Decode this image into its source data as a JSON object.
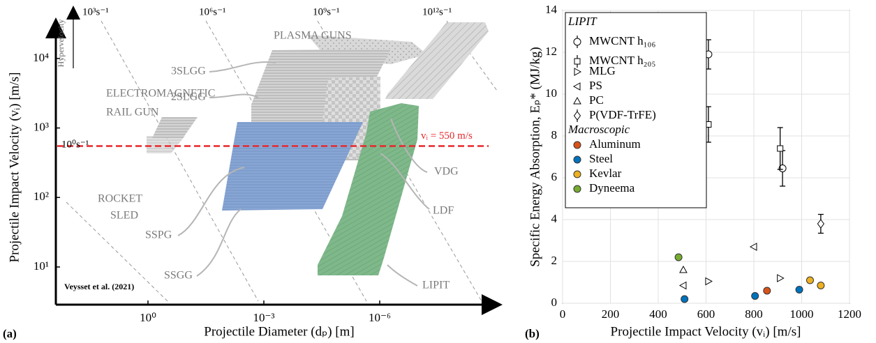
{
  "chart_data": [
    {
      "type": "regime-map",
      "panel_label": "(a)",
      "x_label": "Projectile Diameter (dₚ) [m]",
      "y_label": "Projectile Impact Velocity (vᵢ) [m/s]",
      "xscale": "log",
      "yscale": "log",
      "xlim": [
        243,
        1e-09
      ],
      "ylim": [
        2.87,
        34700
      ],
      "xticks": [
        {
          "value": 1,
          "label": "10⁰"
        },
        {
          "value": 0.001,
          "label": "10⁻³"
        },
        {
          "value": 1e-06,
          "label": "10⁻⁶"
        }
      ],
      "yticks": [
        {
          "value": 10,
          "label": "10¹"
        },
        {
          "value": 100,
          "label": "10²"
        },
        {
          "value": 1000,
          "label": "10³"
        },
        {
          "value": 10000,
          "label": "10⁴"
        }
      ],
      "threshold": {
        "value": 550,
        "label": "vᵢ = 550 m/s",
        "color": "#e8262b"
      },
      "strain_rates": [
        "10⁰s⁻¹",
        "10³s⁻¹",
        "10⁶s⁻¹",
        "10⁹s⁻¹",
        "10¹²s⁻¹"
      ],
      "regions": [
        "PLASMA GUNS",
        "3SLGG",
        "2SLGG",
        "ELECTROMAGNETIC",
        "RAIL GUN",
        "ROCKET",
        "SLED",
        "SSPG",
        "SSGG",
        "VDG",
        "LDF",
        "LIPIT"
      ],
      "arrow_label": "Hypervelocity",
      "source": "Veysset et al. (2021)"
    },
    {
      "type": "scatter",
      "panel_label": "(b)",
      "x_label": "Projectile Impact Velocity (vᵢ) [m/s]",
      "y_label": "Specific Energy Absorption, Eₚ* (MJ/kg)",
      "xlim": [
        0,
        1200
      ],
      "ylim": [
        0,
        14
      ],
      "xticks": [
        0,
        200,
        400,
        600,
        800,
        1000,
        1200
      ],
      "yticks": [
        0,
        2,
        4,
        6,
        8,
        10,
        12,
        14
      ],
      "grid": true,
      "legend_titles": [
        "LIPIT",
        "Macroscopic"
      ],
      "legend": "upper left",
      "series": [
        {
          "name": "MWCNT h₁₀₆",
          "marker": "circle-open",
          "color": "#000000",
          "x": [
            610,
            920
          ],
          "values": [
            11.9,
            6.45
          ],
          "errors": [
            0.7,
            0.85
          ]
        },
        {
          "name": "MWCNT h₂₀₅",
          "marker": "square-open",
          "color": "#000000",
          "x": [
            610,
            910
          ],
          "values": [
            8.55,
            7.4
          ],
          "errors": [
            0.85,
            1.0
          ]
        },
        {
          "name": "MLG",
          "marker": "triangle-right-open",
          "color": "#000000",
          "x": [
            610,
            910
          ],
          "values": [
            1.05,
            1.2
          ]
        },
        {
          "name": "PS",
          "marker": "triangle-left-open",
          "color": "#000000",
          "x": [
            505,
            800
          ],
          "values": [
            0.85,
            2.7
          ]
        },
        {
          "name": "PC",
          "marker": "triangle-up-open",
          "color": "#000000",
          "x": [
            505
          ],
          "values": [
            1.6
          ]
        },
        {
          "name": "P(VDF-TrFE)",
          "marker": "diamond-open",
          "color": "#000000",
          "x": [
            1080
          ],
          "values": [
            3.8
          ],
          "errors": [
            0.45
          ]
        },
        {
          "name": "Aluminum",
          "marker": "circle",
          "color": "#d95319",
          "x": [
            855
          ],
          "values": [
            0.6
          ]
        },
        {
          "name": "Steel",
          "marker": "circle",
          "color": "#0072bd",
          "x": [
            510,
            805,
            990
          ],
          "values": [
            0.2,
            0.35,
            0.65
          ]
        },
        {
          "name": "Kevlar",
          "marker": "circle",
          "color": "#edb120",
          "x": [
            1035,
            1080
          ],
          "values": [
            1.1,
            0.85
          ]
        },
        {
          "name": "Dyneema",
          "marker": "circle",
          "color": "#77ac30",
          "x": [
            485
          ],
          "values": [
            2.2
          ]
        }
      ]
    }
  ]
}
